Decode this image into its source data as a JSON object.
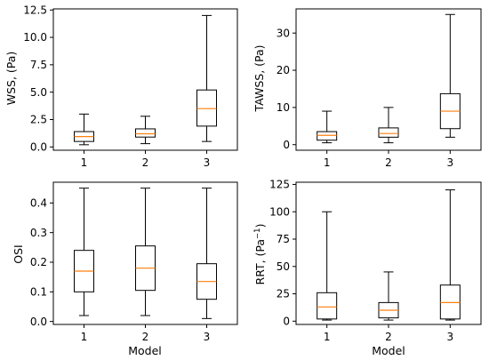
{
  "chart_data": [
    {
      "type": "box",
      "ylabel": "WSS, (Pa)",
      "xlabel": "",
      "categories": [
        "1",
        "2",
        "3"
      ],
      "yticks": [
        "0.0",
        "2.5",
        "5.0",
        "7.5",
        "10.0",
        "12.5"
      ],
      "ytick_values": [
        0,
        2.5,
        5,
        7.5,
        10,
        12.5
      ],
      "ylim": [
        -0.3,
        12.6
      ],
      "boxes": [
        {
          "min": 0.2,
          "q1": 0.5,
          "median": 0.95,
          "q3": 1.4,
          "max": 3.0
        },
        {
          "min": 0.3,
          "q1": 0.9,
          "median": 1.2,
          "q3": 1.65,
          "max": 2.8
        },
        {
          "min": 0.5,
          "q1": 1.9,
          "median": 3.5,
          "q3": 5.2,
          "max": 12.0
        }
      ]
    },
    {
      "type": "box",
      "ylabel": "TAWSS, (Pa)",
      "xlabel": "",
      "categories": [
        "1",
        "2",
        "3"
      ],
      "yticks": [
        "0",
        "10",
        "20",
        "30"
      ],
      "ytick_values": [
        0,
        10,
        20,
        30
      ],
      "ylim": [
        -1.5,
        36.5
      ],
      "boxes": [
        {
          "min": 0.5,
          "q1": 1.2,
          "median": 2.5,
          "q3": 3.5,
          "max": 9.0
        },
        {
          "min": 0.5,
          "q1": 2.0,
          "median": 3.0,
          "q3": 4.5,
          "max": 10.0
        },
        {
          "min": 2.0,
          "q1": 4.3,
          "median": 9.0,
          "q3": 13.7,
          "max": 35.0
        }
      ]
    },
    {
      "type": "box",
      "ylabel": "OSI",
      "xlabel": "Model",
      "categories": [
        "1",
        "2",
        "3"
      ],
      "yticks": [
        "0.0",
        "0.1",
        "0.2",
        "0.3",
        "0.4"
      ],
      "ytick_values": [
        0,
        0.1,
        0.2,
        0.3,
        0.4
      ],
      "ylim": [
        -0.01,
        0.47
      ],
      "boxes": [
        {
          "min": 0.02,
          "q1": 0.1,
          "median": 0.17,
          "q3": 0.24,
          "max": 0.45
        },
        {
          "min": 0.02,
          "q1": 0.105,
          "median": 0.18,
          "q3": 0.255,
          "max": 0.45
        },
        {
          "min": 0.01,
          "q1": 0.075,
          "median": 0.135,
          "q3": 0.195,
          "max": 0.45
        }
      ]
    },
    {
      "type": "box",
      "ylabel": "RRT, (Pa",
      "ylabel_sup": "−1",
      "ylabel_suffix": ")",
      "xlabel": "Model",
      "categories": [
        "1",
        "2",
        "3"
      ],
      "yticks": [
        "0",
        "25",
        "50",
        "75",
        "100",
        "125"
      ],
      "ytick_values": [
        0,
        25,
        50,
        75,
        100,
        125
      ],
      "ylim": [
        -3,
        127
      ],
      "boxes": [
        {
          "min": 1,
          "q1": 2,
          "median": 13,
          "q3": 26,
          "max": 100
        },
        {
          "min": 1,
          "q1": 3,
          "median": 10,
          "q3": 17,
          "max": 45
        },
        {
          "min": 1,
          "q1": 2,
          "median": 17,
          "q3": 33,
          "max": 120
        }
      ]
    }
  ],
  "colors": {
    "box_line": "#000000",
    "median_line": "#ff7f0e",
    "background": "#ffffff"
  }
}
